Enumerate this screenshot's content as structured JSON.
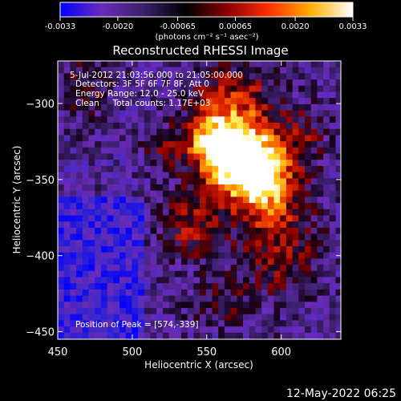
{
  "chart_data": {
    "type": "heatmap",
    "title": "Reconstructed RHESSI Image",
    "xlabel": "Heliocentric X (arcsec)",
    "ylabel": "Heliocentric Y (arcsec)",
    "xlim": [
      450,
      640
    ],
    "ylim": [
      -455,
      -272
    ],
    "x_ticks": [
      450,
      500,
      550,
      600
    ],
    "y_ticks": [
      -300,
      -350,
      -400,
      -450
    ],
    "colorbar": {
      "range": [
        -0.0033,
        0.0033
      ],
      "ticks": [
        "-0.0033",
        "-0.0020",
        "-0.00065",
        "0.00065",
        "0.0020",
        "0.0033"
      ],
      "label": "(photons cm⁻² s⁻¹ asec⁻²)",
      "colors": [
        "#0000ff",
        "#6a2bb8",
        "#3a1f6a",
        "#000000",
        "#8a0000",
        "#ff3000",
        "#ffb000",
        "#ffffff"
      ]
    },
    "annotations": [
      "5-Jul-2012 21:03:56.000 to 21:05:00.000",
      "Detectors: 3F 5F 6F 7F 8F, Att 0",
      "Energy Range: 12.0 - 25.0 keV",
      "Clean     Total counts: 1.17E+03"
    ],
    "peak_label": "Position of Peak = [574,-339]",
    "peak": {
      "x": 574,
      "y": -339
    },
    "max_value": 0.0033
  },
  "footer_date": "12-May-2022 06:25"
}
